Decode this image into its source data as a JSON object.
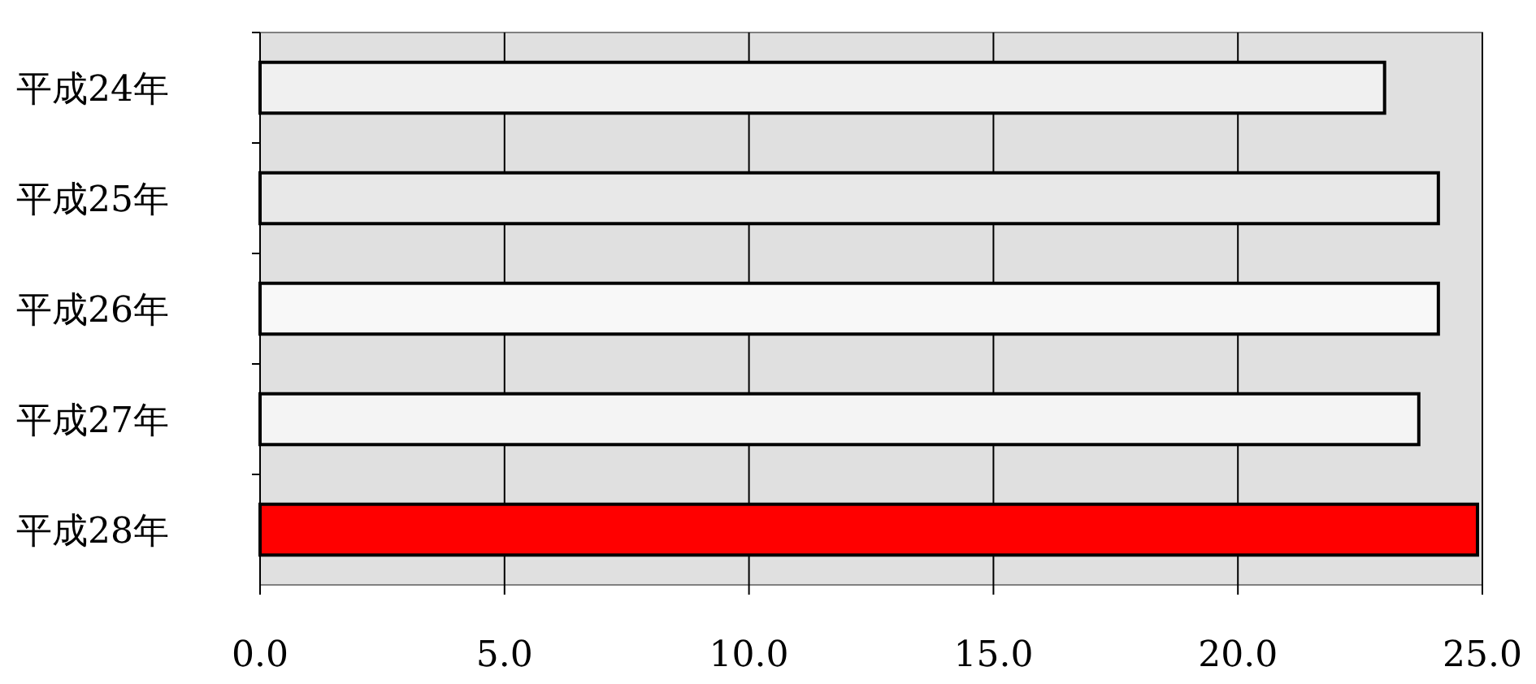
{
  "chart_data": {
    "type": "bar",
    "orientation": "horizontal",
    "categories": [
      "平成24年",
      "平成25年",
      "平成26年",
      "平成27年",
      "平成28年"
    ],
    "values": [
      23.0,
      24.1,
      24.1,
      23.7,
      24.9
    ],
    "colors": [
      "#f0f0f0",
      "#e8e8e8",
      "#f8f8f8",
      "#f4f4f4",
      "#ff0000"
    ],
    "xlim": [
      0,
      25
    ],
    "xticks": [
      {
        "value": 0,
        "label": "0.0"
      },
      {
        "value": 5,
        "label": "5.0"
      },
      {
        "value": 10,
        "label": "10.0"
      },
      {
        "value": 15,
        "label": "15.0"
      },
      {
        "value": 20,
        "label": "20.0"
      },
      {
        "value": 25,
        "label": "25.0"
      }
    ],
    "grid": "x"
  }
}
